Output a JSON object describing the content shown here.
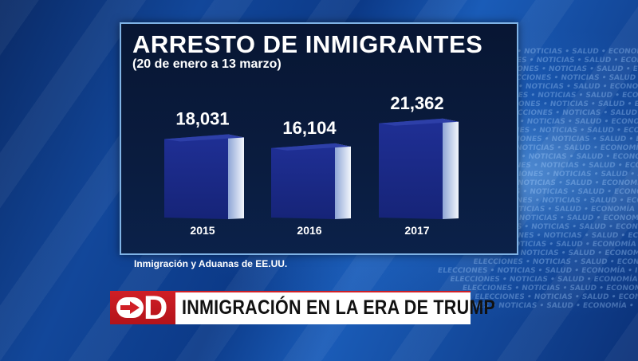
{
  "chart_data": {
    "type": "bar",
    "title": "ARRESTO DE INMIGRANTES",
    "subtitle": "(20 de enero a 13 marzo)",
    "categories": [
      "2015",
      "2016",
      "2017"
    ],
    "values": [
      18031,
      16104,
      21362
    ],
    "value_labels": [
      "18,031",
      "16,104",
      "21,362"
    ],
    "xlabel": "",
    "ylabel": "",
    "ylim": [
      0,
      22000
    ],
    "source": "Inmigración y Aduanas de EE.UU.",
    "colors": {
      "bar_front": "#1a2a8a",
      "bar_side": "#dfe8f5",
      "bar_top": "#2d3fa8"
    }
  },
  "lower_third": {
    "logo_letter": "D",
    "logo_icon": "arrow-right-icon",
    "headline": "INMIGRACIÓN EN LA ERA DE TRUMP",
    "accent_color": "#d01f26"
  },
  "background_ticker": "ELECCIONES • NOTICIAS • SALUD • ECONOMÍA • INMIGRACIÓN • POLÍTICA"
}
